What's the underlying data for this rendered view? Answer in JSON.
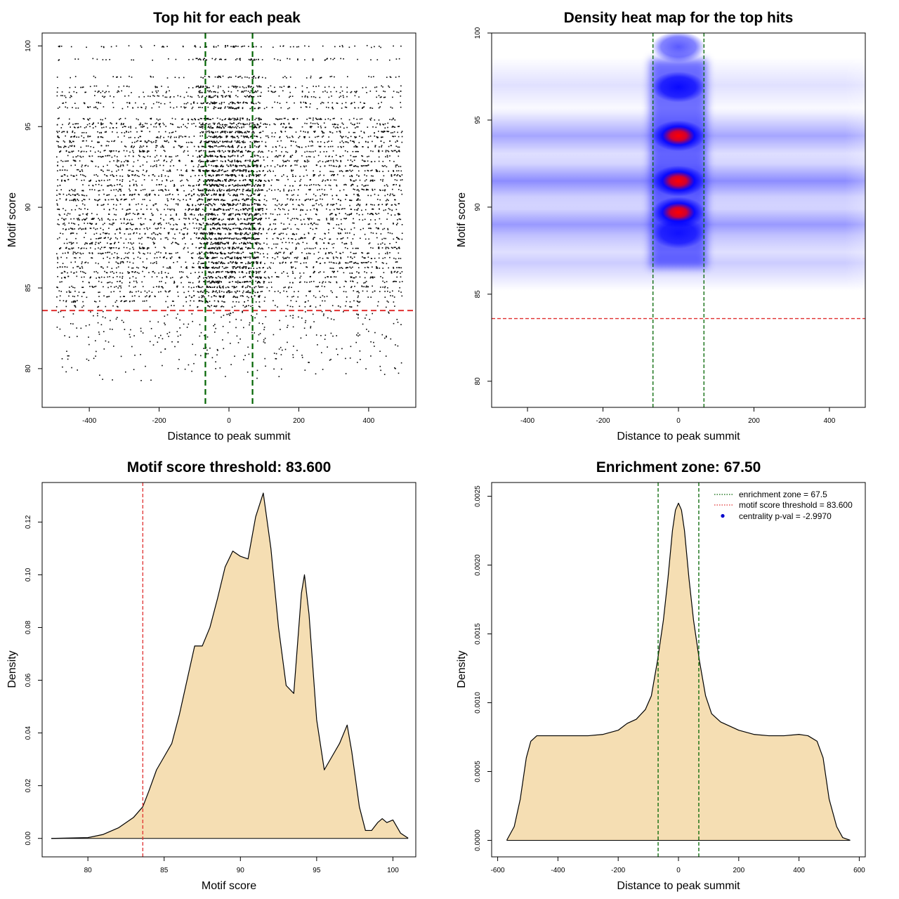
{
  "colors": {
    "threshold_line": "#e03030",
    "zone_line": "#006400",
    "density_fill": "#f5deb3",
    "heat_low": "#ffffff",
    "heat_mid": "#0000ff",
    "heat_high": "#ff0000",
    "legend_marker": "#0000cc"
  },
  "chart_data": [
    {
      "id": "scatter",
      "type": "scatter",
      "title": "Top hit for each peak",
      "xlabel": "Distance to peak summit",
      "ylabel": "Motif score",
      "xlim": [
        -535,
        535
      ],
      "ylim": [
        77.6,
        100.8
      ],
      "xticks": [
        -400,
        -200,
        0,
        200,
        400
      ],
      "yticks": [
        80,
        85,
        90,
        95,
        100
      ],
      "x_range": [
        -495,
        495
      ],
      "score_levels": [
        {
          "score": 100.0,
          "density": 0.45
        },
        {
          "score": 99.2,
          "density": 0.45
        },
        {
          "score": 98.1,
          "density": 0.45
        },
        {
          "score": 97.5,
          "density": 0.6
        },
        {
          "score": 97.2,
          "density": 0.6
        },
        {
          "score": 96.9,
          "density": 0.65
        },
        {
          "score": 96.5,
          "density": 0.7
        },
        {
          "score": 96.2,
          "density": 0.7
        },
        {
          "score": 95.5,
          "density": 0.8
        },
        {
          "score": 95.2,
          "density": 0.85
        },
        {
          "score": 95.0,
          "density": 0.85
        },
        {
          "score": 94.7,
          "density": 0.9
        },
        {
          "score": 94.4,
          "density": 0.95
        },
        {
          "score": 94.1,
          "density": 0.95
        },
        {
          "score": 93.8,
          "density": 0.95
        },
        {
          "score": 93.5,
          "density": 0.9
        },
        {
          "score": 93.2,
          "density": 0.85
        },
        {
          "score": 92.9,
          "density": 0.9
        },
        {
          "score": 92.6,
          "density": 0.95
        },
        {
          "score": 92.3,
          "density": 0.95
        },
        {
          "score": 92.0,
          "density": 0.95
        },
        {
          "score": 91.7,
          "density": 0.95
        },
        {
          "score": 91.4,
          "density": 0.95
        },
        {
          "score": 91.1,
          "density": 0.95
        },
        {
          "score": 90.8,
          "density": 0.95
        },
        {
          "score": 90.5,
          "density": 0.95
        },
        {
          "score": 90.2,
          "density": 0.95
        },
        {
          "score": 89.9,
          "density": 0.95
        },
        {
          "score": 89.6,
          "density": 0.95
        },
        {
          "score": 89.3,
          "density": 0.95
        },
        {
          "score": 89.0,
          "density": 0.95
        },
        {
          "score": 88.7,
          "density": 0.95
        },
        {
          "score": 88.4,
          "density": 0.95
        },
        {
          "score": 88.1,
          "density": 0.95
        },
        {
          "score": 87.8,
          "density": 0.95
        },
        {
          "score": 87.5,
          "density": 0.95
        },
        {
          "score": 87.2,
          "density": 0.95
        },
        {
          "score": 86.9,
          "density": 0.95
        },
        {
          "score": 86.6,
          "density": 0.9
        },
        {
          "score": 86.3,
          "density": 0.9
        },
        {
          "score": 86.0,
          "density": 0.85
        },
        {
          "score": 85.7,
          "density": 0.85
        },
        {
          "score": 85.4,
          "density": 0.8
        },
        {
          "score": 85.1,
          "density": 0.75
        },
        {
          "score": 84.8,
          "density": 0.7
        },
        {
          "score": 84.5,
          "density": 0.6
        },
        {
          "score": 84.2,
          "density": 0.5
        },
        {
          "score": 83.9,
          "density": 0.4
        }
      ],
      "sparse_points_below_threshold": 320,
      "h_lines": [
        83.6
      ],
      "v_lines": [
        -67.5,
        67.5
      ]
    },
    {
      "id": "heatmap",
      "type": "heatmap",
      "title": "Density heat map for the top hits",
      "xlabel": "Distance to peak summit",
      "ylabel": "Motif score",
      "xlim": [
        -495,
        495
      ],
      "ylim": [
        78.5,
        100.0
      ],
      "xticks": [
        -400,
        -200,
        0,
        200,
        400
      ],
      "yticks": [
        80,
        85,
        90,
        95,
        100
      ],
      "hotspots": [
        {
          "x": 0,
          "y": 99.2,
          "intensity": 0.3
        },
        {
          "x": 0,
          "y": 96.9,
          "intensity": 0.55
        },
        {
          "x": 0,
          "y": 94.1,
          "intensity": 0.85
        },
        {
          "x": 0,
          "y": 91.5,
          "intensity": 0.95
        },
        {
          "x": 0,
          "y": 89.7,
          "intensity": 0.7
        },
        {
          "x": 0,
          "y": 88.5,
          "intensity": 0.45
        }
      ],
      "bands": [
        {
          "y": 97.0,
          "intensity": 0.12
        },
        {
          "y": 94.1,
          "intensity": 0.35
        },
        {
          "y": 91.5,
          "intensity": 0.45
        },
        {
          "y": 89.0,
          "intensity": 0.4
        },
        {
          "y": 86.8,
          "intensity": 0.2
        }
      ],
      "h_lines": [
        83.6
      ],
      "v_lines": [
        -67.5,
        67.5
      ]
    },
    {
      "id": "score_density",
      "type": "area",
      "title": "Motif score threshold: 83.600",
      "xlabel": "Motif score",
      "ylabel": "Density",
      "xlim": [
        77.0,
        101.5
      ],
      "ylim": [
        -0.007,
        0.135
      ],
      "xticks": [
        80,
        85,
        90,
        95,
        100
      ],
      "yticks": [
        0.0,
        0.02,
        0.04,
        0.06,
        0.08,
        0.1,
        0.12
      ],
      "ytick_labels": [
        "0.00",
        "0.02",
        "0.04",
        "0.06",
        "0.08",
        "0.10",
        "0.12"
      ],
      "x": [
        77.6,
        80.0,
        81.0,
        82.0,
        83.0,
        83.6,
        84.0,
        84.5,
        85.0,
        85.5,
        86.0,
        86.5,
        87.0,
        87.5,
        88.0,
        88.5,
        89.0,
        89.5,
        90.0,
        90.5,
        91.0,
        91.5,
        92.0,
        92.5,
        93.0,
        93.5,
        94.0,
        94.2,
        94.5,
        95.0,
        95.5,
        96.0,
        96.5,
        97.0,
        97.3,
        97.8,
        98.2,
        98.6,
        99.0,
        99.3,
        99.6,
        100.0,
        100.5,
        101.0
      ],
      "y": [
        0.0,
        0.0003,
        0.0015,
        0.004,
        0.008,
        0.012,
        0.018,
        0.026,
        0.031,
        0.036,
        0.047,
        0.06,
        0.073,
        0.073,
        0.08,
        0.091,
        0.103,
        0.109,
        0.107,
        0.106,
        0.122,
        0.131,
        0.11,
        0.08,
        0.058,
        0.055,
        0.093,
        0.1,
        0.085,
        0.045,
        0.026,
        0.031,
        0.036,
        0.043,
        0.033,
        0.012,
        0.003,
        0.003,
        0.006,
        0.0075,
        0.006,
        0.007,
        0.002,
        0.0001
      ],
      "v_lines": [
        83.6
      ]
    },
    {
      "id": "distance_density",
      "type": "area",
      "title": "Enrichment zone: 67.50",
      "xlabel": "Distance to peak summit",
      "ylabel": "Density",
      "xlim": [
        -620,
        620
      ],
      "ylim": [
        -0.00012,
        0.0026
      ],
      "xticks": [
        -600,
        -400,
        -200,
        0,
        200,
        400,
        600
      ],
      "yticks": [
        0.0,
        0.0005,
        0.001,
        0.0015,
        0.002,
        0.0025
      ],
      "ytick_labels": [
        "0.0000",
        "0.0005",
        "0.0010",
        "0.0015",
        "0.0020",
        "0.0025"
      ],
      "x": [
        -570,
        -545,
        -525,
        -505,
        -490,
        -470,
        -440,
        -400,
        -350,
        -300,
        -250,
        -200,
        -170,
        -140,
        -110,
        -90,
        -70,
        -50,
        -35,
        -20,
        -10,
        0,
        10,
        20,
        35,
        50,
        70,
        90,
        110,
        140,
        170,
        200,
        250,
        300,
        350,
        400,
        430,
        460,
        480,
        500,
        525,
        545,
        570
      ],
      "y": [
        0.0,
        0.0001,
        0.0003,
        0.0006,
        0.00072,
        0.00076,
        0.00076,
        0.00076,
        0.00076,
        0.00076,
        0.00077,
        0.0008,
        0.00085,
        0.00088,
        0.00095,
        0.00105,
        0.0013,
        0.0016,
        0.0019,
        0.00225,
        0.0024,
        0.00245,
        0.0024,
        0.00225,
        0.0019,
        0.0016,
        0.0013,
        0.00105,
        0.00092,
        0.00086,
        0.00083,
        0.0008,
        0.00077,
        0.00076,
        0.00076,
        0.00077,
        0.00076,
        0.00072,
        0.0006,
        0.0003,
        0.0001,
        2e-05,
        0.0
      ],
      "v_lines": [
        -67.5,
        67.5
      ],
      "legend": {
        "position": "top-right",
        "entries": [
          {
            "label": "enrichment zone = 67.5",
            "style": "dotted-line",
            "color": "#006400"
          },
          {
            "label": "motif score threshold = 83.600",
            "style": "dotted-line",
            "color": "#e03030"
          },
          {
            "label": "centrality p-val = -2.9970",
            "style": "point",
            "color": "#0000cc"
          }
        ]
      }
    }
  ]
}
